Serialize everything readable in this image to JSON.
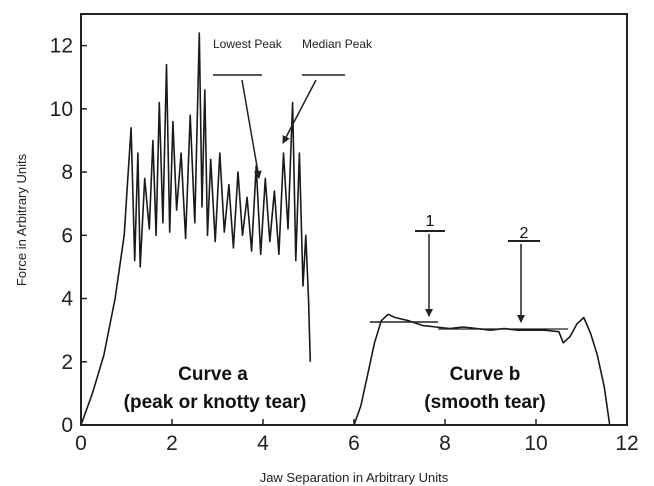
{
  "chart_data": {
    "type": "line",
    "xlabel": "Jaw Separation in Arbitrary Units",
    "ylabel": "Force in Arbitrary Units",
    "xlim": [
      0,
      12
    ],
    "ylim": [
      0,
      13
    ],
    "xticks": [
      "0",
      "2",
      "4",
      "6",
      "8",
      "10",
      "12"
    ],
    "yticks": [
      "0",
      "2",
      "4",
      "6",
      "8",
      "10",
      "12"
    ],
    "grid": false,
    "series": [
      {
        "x": [
          0,
          0.25,
          0.5,
          0.75,
          0.95,
          1.02,
          1.1,
          1.18,
          1.25,
          1.3,
          1.4,
          1.5,
          1.58,
          1.65,
          1.72,
          1.8,
          1.88,
          1.95,
          2.02,
          2.1,
          2.2,
          2.3,
          2.4,
          2.5,
          2.6,
          2.66,
          2.72,
          2.78,
          2.85,
          2.95,
          3.05,
          3.15,
          3.25,
          3.35,
          3.45,
          3.55,
          3.65,
          3.75,
          3.85,
          3.95,
          4.05,
          4.15,
          4.25,
          4.35,
          4.45,
          4.55,
          4.65,
          4.72,
          4.8,
          4.88,
          4.94,
          5.0,
          5.04
        ],
        "y": [
          0,
          1.0,
          2.2,
          4.0,
          6.0,
          7.6,
          9.4,
          5.2,
          8.6,
          5.0,
          7.8,
          6.2,
          9.0,
          6.0,
          10.2,
          6.4,
          11.4,
          6.1,
          9.6,
          6.8,
          8.6,
          5.9,
          9.8,
          6.4,
          12.4,
          6.9,
          10.6,
          6.0,
          8.4,
          5.8,
          8.6,
          6.1,
          7.6,
          5.6,
          8.0,
          6.0,
          7.2,
          5.5,
          8.2,
          5.4,
          7.8,
          5.8,
          7.4,
          5.4,
          8.6,
          6.2,
          10.2,
          5.2,
          8.6,
          4.4,
          6.0,
          4.0,
          2.0
        ]
      },
      {
        "x": [
          6.0,
          6.15,
          6.3,
          6.45,
          6.6,
          6.75,
          6.9,
          7.2,
          7.5,
          7.8,
          8.1,
          8.4,
          8.7,
          9.0,
          9.3,
          9.6,
          9.9,
          10.2,
          10.5,
          10.6,
          10.75,
          10.9,
          11.05,
          11.2,
          11.35,
          11.5,
          11.62
        ],
        "y": [
          0,
          0.6,
          1.6,
          2.6,
          3.3,
          3.5,
          3.4,
          3.3,
          3.15,
          3.1,
          3.05,
          3.1,
          3.05,
          3.0,
          3.05,
          3.0,
          3.0,
          3.0,
          2.95,
          2.6,
          2.8,
          3.2,
          3.4,
          2.9,
          2.2,
          1.2,
          0
        ]
      }
    ],
    "annotations": {
      "lowest_peak": "Lowest Peak",
      "median_peak": "Median Peak",
      "marker_1": "1",
      "marker_2": "2",
      "curve_a_line1": "Curve a",
      "curve_a_line2": "(peak or knotty tear)",
      "curve_b_line1": "Curve b",
      "curve_b_line2": "(smooth tear)"
    }
  }
}
